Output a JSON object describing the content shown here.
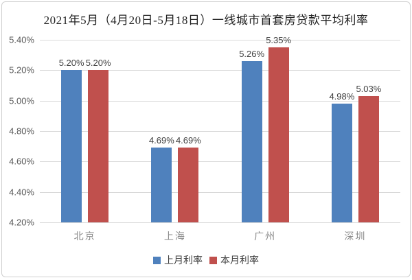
{
  "chart_data": {
    "type": "bar",
    "title": "2021年5月（4月20日-5月18日）一线城市首套房贷款平均利率",
    "categories": [
      "北京",
      "上海",
      "广州",
      "深圳"
    ],
    "series": [
      {
        "name": "上月利率",
        "color": "#4F81BD",
        "values": [
          5.2,
          4.69,
          5.26,
          4.98
        ],
        "labels": [
          "5.20%",
          "4.69%",
          "5.26%",
          "4.98%"
        ]
      },
      {
        "name": "本月利率",
        "color": "#C0504D",
        "values": [
          5.2,
          4.69,
          5.35,
          5.03
        ],
        "labels": [
          "5.20%",
          "4.69%",
          "5.35%",
          "5.03%"
        ]
      }
    ],
    "y_axis": {
      "min": 4.2,
      "max": 5.4,
      "step": 0.2,
      "tick_labels": [
        "5.40%",
        "5.20%",
        "5.00%",
        "4.80%",
        "4.60%",
        "4.40%",
        "4.20%"
      ]
    },
    "xlabel": "",
    "ylabel": "",
    "grid": true,
    "legend_position": "bottom",
    "colors": {
      "gridline": "#d9d9d9",
      "title_text": "#222222",
      "axis_text": "#595959",
      "data_label_text": "#404040",
      "category_text": "#8a8a8a",
      "background": "#ffffff"
    }
  }
}
